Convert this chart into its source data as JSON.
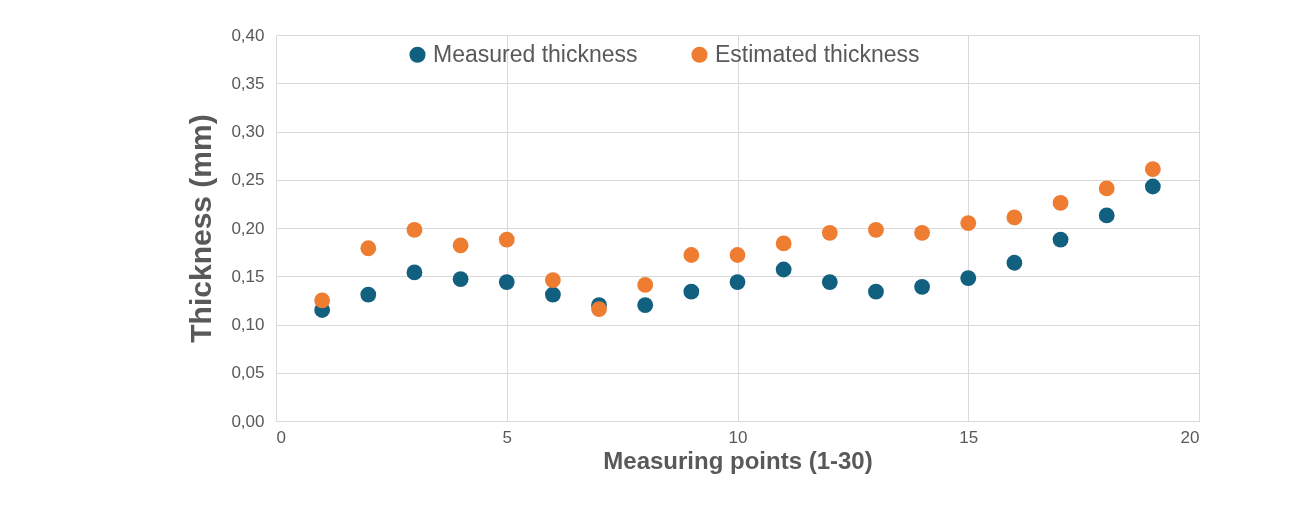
{
  "chart_data": {
    "type": "scatter",
    "xlabel": "Measuring points (1-30)",
    "ylabel": "Thickness (mm)",
    "x": [
      1,
      2,
      3,
      4,
      5,
      6,
      7,
      8,
      9,
      10,
      11,
      12,
      13,
      14,
      15,
      16,
      17,
      18,
      19
    ],
    "series": [
      {
        "name": "Measured thickness",
        "color": "#12607f",
        "values": [
          0.115,
          0.131,
          0.154,
          0.147,
          0.144,
          0.131,
          0.12,
          0.12,
          0.134,
          0.144,
          0.157,
          0.144,
          0.134,
          0.139,
          0.148,
          0.164,
          0.188,
          0.213,
          0.243
        ]
      },
      {
        "name": "Estimated thickness",
        "color": "#ee7d31",
        "values": [
          0.125,
          0.179,
          0.198,
          0.182,
          0.188,
          0.146,
          0.116,
          0.141,
          0.172,
          0.172,
          0.184,
          0.195,
          0.198,
          0.195,
          0.205,
          0.211,
          0.226,
          0.241,
          0.261
        ]
      }
    ],
    "xlim": [
      0,
      20
    ],
    "xticks": [
      0,
      5,
      10,
      15,
      20
    ],
    "ylim": [
      0,
      0.4
    ],
    "yticks": [
      {
        "value": 0,
        "label": "0,00"
      },
      {
        "value": 0.05,
        "label": "0,05"
      },
      {
        "value": 0.1,
        "label": "0,10"
      },
      {
        "value": 0.15,
        "label": "0,15"
      },
      {
        "value": 0.2,
        "label": "0,20"
      },
      {
        "value": 0.25,
        "label": "0,25"
      },
      {
        "value": 0.3,
        "label": "0,30"
      },
      {
        "value": 0.35,
        "label": "0,35"
      },
      {
        "value": 0.4,
        "label": "0,40"
      }
    ],
    "grid": true,
    "legend": "top",
    "marker": "circle"
  }
}
